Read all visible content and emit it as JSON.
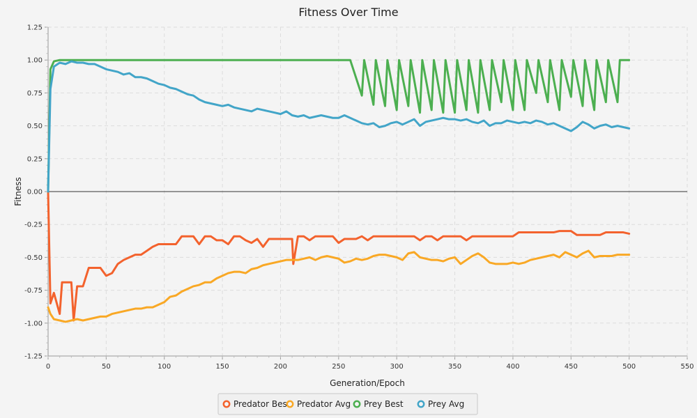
{
  "chart_data": {
    "type": "line",
    "title": "Fitness Over Time",
    "xlabel": "Generation/Epoch",
    "ylabel": "Fitness",
    "xlim": [
      0,
      550
    ],
    "ylim": [
      -1.25,
      1.25
    ],
    "x_ticks": [
      0,
      50,
      100,
      150,
      200,
      250,
      300,
      350,
      400,
      450,
      500,
      550
    ],
    "x_tick_labels": [
      "0",
      "50",
      "100",
      "150",
      "200",
      "250",
      "300",
      "350",
      "400",
      "450",
      "500",
      "550"
    ],
    "y_ticks": [
      -1.25,
      -1.0,
      -0.75,
      -0.5,
      -0.25,
      0.0,
      0.25,
      0.5,
      0.75,
      1.0,
      1.25
    ],
    "y_tick_labels": [
      "-1.25",
      "-1.00",
      "-0.75",
      "-0.50",
      "-0.25",
      "0.00",
      "0.25",
      "0.50",
      "0.75",
      "1.00",
      "1.25"
    ],
    "grid": true,
    "legend_position": "bottom-center",
    "series": [
      {
        "name": "Predator Best",
        "color": "#f3622d",
        "x": [
          0,
          2,
          5,
          10,
          12,
          20,
          22,
          25,
          28,
          30,
          35,
          40,
          45,
          50,
          55,
          60,
          65,
          70,
          75,
          80,
          85,
          90,
          95,
          100,
          105,
          110,
          115,
          120,
          125,
          130,
          135,
          140,
          145,
          150,
          155,
          160,
          165,
          170,
          175,
          180,
          185,
          190,
          195,
          200,
          205,
          210,
          211,
          215,
          220,
          225,
          230,
          235,
          240,
          245,
          250,
          255,
          260,
          265,
          270,
          275,
          280,
          285,
          290,
          295,
          300,
          305,
          310,
          315,
          320,
          325,
          330,
          335,
          340,
          345,
          350,
          355,
          360,
          365,
          370,
          375,
          380,
          385,
          390,
          395,
          400,
          405,
          410,
          415,
          420,
          425,
          430,
          435,
          440,
          445,
          450,
          455,
          460,
          465,
          470,
          475,
          480,
          485,
          490,
          495,
          500
        ],
        "y": [
          0.0,
          -0.85,
          -0.77,
          -0.93,
          -0.69,
          -0.69,
          -0.98,
          -0.72,
          -0.72,
          -0.72,
          -0.58,
          -0.58,
          -0.58,
          -0.64,
          -0.62,
          -0.55,
          -0.52,
          -0.5,
          -0.48,
          -0.48,
          -0.45,
          -0.42,
          -0.4,
          -0.4,
          -0.4,
          -0.4,
          -0.34,
          -0.34,
          -0.34,
          -0.4,
          -0.34,
          -0.34,
          -0.37,
          -0.37,
          -0.4,
          -0.34,
          -0.34,
          -0.37,
          -0.39,
          -0.36,
          -0.42,
          -0.36,
          -0.36,
          -0.36,
          -0.36,
          -0.36,
          -0.55,
          -0.34,
          -0.34,
          -0.37,
          -0.34,
          -0.34,
          -0.34,
          -0.34,
          -0.39,
          -0.36,
          -0.36,
          -0.36,
          -0.34,
          -0.37,
          -0.34,
          -0.34,
          -0.34,
          -0.34,
          -0.34,
          -0.34,
          -0.34,
          -0.34,
          -0.37,
          -0.34,
          -0.34,
          -0.37,
          -0.34,
          -0.34,
          -0.34,
          -0.34,
          -0.37,
          -0.34,
          -0.34,
          -0.34,
          -0.34,
          -0.34,
          -0.34,
          -0.34,
          -0.34,
          -0.31,
          -0.31,
          -0.31,
          -0.31,
          -0.31,
          -0.31,
          -0.31,
          -0.3,
          -0.3,
          -0.3,
          -0.33,
          -0.33,
          -0.33,
          -0.33,
          -0.33,
          -0.31,
          -0.31,
          -0.31,
          -0.31,
          -0.32
        ]
      },
      {
        "name": "Predator Avg",
        "color": "#f9a825",
        "x": [
          0,
          2,
          5,
          10,
          15,
          20,
          25,
          30,
          35,
          40,
          45,
          50,
          55,
          60,
          65,
          70,
          75,
          80,
          85,
          90,
          95,
          100,
          105,
          110,
          115,
          120,
          125,
          130,
          135,
          140,
          145,
          150,
          155,
          160,
          165,
          170,
          175,
          180,
          185,
          190,
          195,
          200,
          205,
          210,
          215,
          220,
          225,
          230,
          235,
          240,
          245,
          250,
          255,
          260,
          265,
          270,
          275,
          280,
          285,
          290,
          295,
          300,
          305,
          310,
          315,
          320,
          325,
          330,
          335,
          340,
          345,
          350,
          355,
          360,
          365,
          370,
          375,
          380,
          385,
          390,
          395,
          400,
          405,
          410,
          415,
          420,
          425,
          430,
          435,
          440,
          445,
          450,
          455,
          460,
          465,
          470,
          475,
          480,
          485,
          490,
          495,
          500
        ],
        "y": [
          -0.88,
          -0.93,
          -0.97,
          -0.98,
          -0.99,
          -0.98,
          -0.97,
          -0.98,
          -0.97,
          -0.96,
          -0.95,
          -0.95,
          -0.93,
          -0.92,
          -0.91,
          -0.9,
          -0.89,
          -0.89,
          -0.88,
          -0.88,
          -0.86,
          -0.84,
          -0.8,
          -0.79,
          -0.76,
          -0.74,
          -0.72,
          -0.71,
          -0.69,
          -0.69,
          -0.66,
          -0.64,
          -0.62,
          -0.61,
          -0.61,
          -0.62,
          -0.59,
          -0.58,
          -0.56,
          -0.55,
          -0.54,
          -0.53,
          -0.52,
          -0.52,
          -0.52,
          -0.51,
          -0.5,
          -0.52,
          -0.5,
          -0.49,
          -0.5,
          -0.51,
          -0.54,
          -0.53,
          -0.51,
          -0.52,
          -0.51,
          -0.49,
          -0.48,
          -0.48,
          -0.49,
          -0.5,
          -0.52,
          -0.47,
          -0.46,
          -0.5,
          -0.51,
          -0.52,
          -0.52,
          -0.53,
          -0.51,
          -0.5,
          -0.55,
          -0.52,
          -0.49,
          -0.47,
          -0.5,
          -0.54,
          -0.55,
          -0.55,
          -0.55,
          -0.54,
          -0.55,
          -0.54,
          -0.52,
          -0.51,
          -0.5,
          -0.49,
          -0.48,
          -0.5,
          -0.46,
          -0.48,
          -0.5,
          -0.47,
          -0.45,
          -0.5,
          -0.49,
          -0.49,
          -0.49,
          -0.48,
          -0.48,
          -0.48
        ]
      },
      {
        "name": "Prey Best",
        "color": "#4caf50",
        "x": [
          0,
          2,
          5,
          10,
          15,
          20,
          30,
          40,
          50,
          60,
          70,
          80,
          90,
          100,
          110,
          120,
          130,
          140,
          150,
          160,
          170,
          180,
          190,
          200,
          210,
          220,
          230,
          240,
          250,
          260,
          270,
          272,
          280,
          282,
          290,
          292,
          300,
          302,
          310,
          312,
          320,
          322,
          330,
          332,
          340,
          342,
          350,
          352,
          360,
          362,
          370,
          372,
          380,
          382,
          390,
          392,
          400,
          402,
          410,
          412,
          420,
          422,
          430,
          432,
          440,
          442,
          450,
          452,
          460,
          462,
          470,
          472,
          480,
          482,
          490,
          492,
          500
        ],
        "y": [
          0.0,
          0.93,
          0.99,
          1.0,
          1.0,
          1.0,
          1.0,
          1.0,
          1.0,
          1.0,
          1.0,
          1.0,
          1.0,
          1.0,
          1.0,
          1.0,
          1.0,
          1.0,
          1.0,
          1.0,
          1.0,
          1.0,
          1.0,
          1.0,
          1.0,
          1.0,
          1.0,
          1.0,
          1.0,
          1.0,
          0.73,
          1.0,
          0.66,
          1.0,
          0.65,
          1.0,
          0.62,
          1.0,
          0.65,
          1.0,
          0.6,
          1.0,
          0.62,
          1.0,
          0.6,
          1.0,
          0.6,
          1.0,
          0.62,
          1.0,
          0.6,
          1.0,
          0.62,
          1.0,
          0.68,
          1.0,
          0.62,
          1.0,
          0.62,
          1.0,
          0.75,
          1.0,
          0.68,
          1.0,
          0.62,
          1.0,
          0.72,
          1.0,
          0.65,
          1.0,
          0.62,
          1.0,
          0.68,
          1.0,
          0.68,
          1.0,
          1.0
        ]
      },
      {
        "name": "Prey Avg",
        "color": "#42a5c8",
        "x": [
          0,
          2,
          5,
          10,
          15,
          20,
          25,
          30,
          35,
          40,
          45,
          50,
          55,
          60,
          65,
          70,
          75,
          80,
          85,
          90,
          95,
          100,
          105,
          110,
          115,
          120,
          125,
          130,
          135,
          140,
          145,
          150,
          155,
          160,
          165,
          170,
          175,
          180,
          185,
          190,
          195,
          200,
          205,
          210,
          215,
          220,
          225,
          230,
          235,
          240,
          245,
          250,
          255,
          260,
          265,
          270,
          275,
          280,
          285,
          290,
          295,
          300,
          305,
          310,
          315,
          320,
          325,
          330,
          335,
          340,
          345,
          350,
          355,
          360,
          365,
          370,
          375,
          380,
          385,
          390,
          395,
          400,
          405,
          410,
          415,
          420,
          425,
          430,
          435,
          440,
          445,
          450,
          455,
          460,
          465,
          470,
          475,
          480,
          485,
          490,
          495,
          500
        ],
        "y": [
          0.0,
          0.78,
          0.95,
          0.98,
          0.97,
          0.99,
          0.98,
          0.98,
          0.97,
          0.97,
          0.95,
          0.93,
          0.92,
          0.91,
          0.89,
          0.9,
          0.87,
          0.87,
          0.86,
          0.84,
          0.82,
          0.81,
          0.79,
          0.78,
          0.76,
          0.74,
          0.73,
          0.7,
          0.68,
          0.67,
          0.66,
          0.65,
          0.66,
          0.64,
          0.63,
          0.62,
          0.61,
          0.63,
          0.62,
          0.61,
          0.6,
          0.59,
          0.61,
          0.58,
          0.57,
          0.58,
          0.56,
          0.57,
          0.58,
          0.57,
          0.56,
          0.56,
          0.58,
          0.56,
          0.54,
          0.52,
          0.51,
          0.52,
          0.49,
          0.5,
          0.52,
          0.53,
          0.51,
          0.53,
          0.55,
          0.5,
          0.53,
          0.54,
          0.55,
          0.56,
          0.55,
          0.55,
          0.54,
          0.55,
          0.53,
          0.52,
          0.54,
          0.5,
          0.52,
          0.52,
          0.54,
          0.53,
          0.52,
          0.53,
          0.52,
          0.54,
          0.53,
          0.51,
          0.52,
          0.5,
          0.48,
          0.46,
          0.49,
          0.53,
          0.51,
          0.48,
          0.5,
          0.51,
          0.49,
          0.5,
          0.49,
          0.48
        ]
      }
    ]
  }
}
